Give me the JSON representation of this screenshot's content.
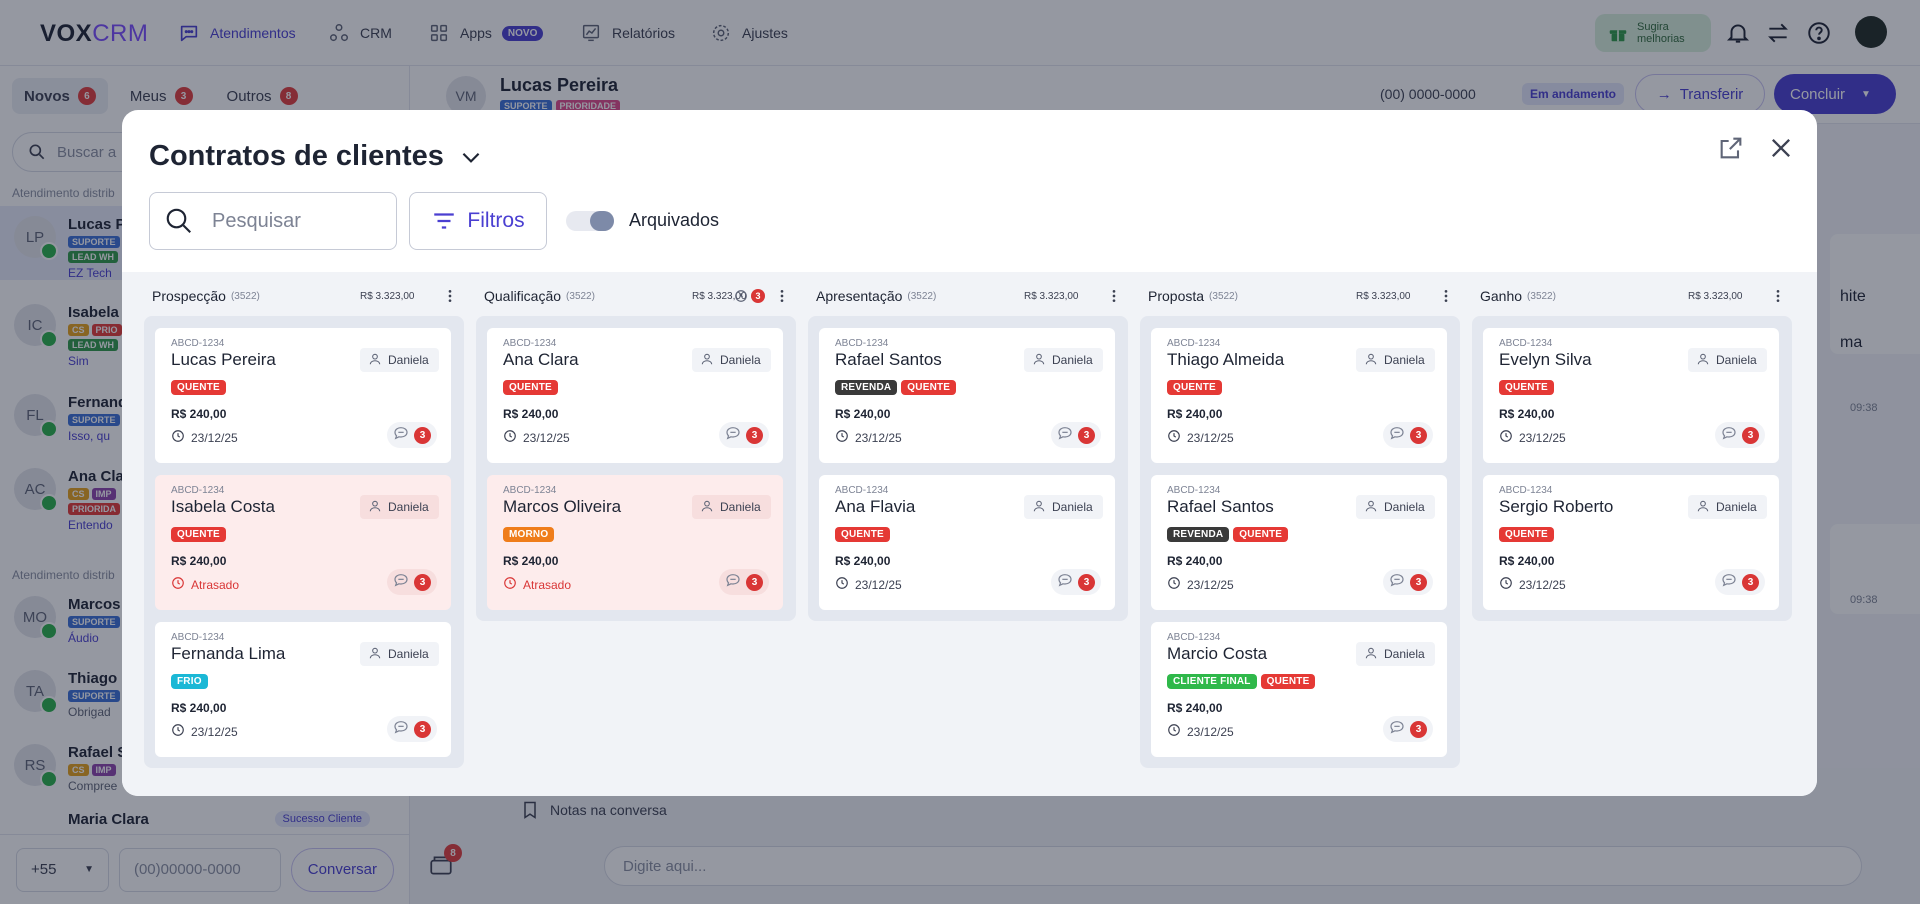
{
  "app": {
    "logo_part1": "VOX",
    "logo_part2": "CRM",
    "nav": [
      {
        "label": "Atendimentos"
      },
      {
        "label": "CRM"
      },
      {
        "label": "Apps",
        "badge": "NOVO"
      },
      {
        "label": "Relatórios"
      },
      {
        "label": "Ajustes"
      }
    ],
    "suggest_line1": "Sugira",
    "suggest_line2": "melhorias"
  },
  "left": {
    "tabs": [
      {
        "label": "Novos",
        "count": "6"
      },
      {
        "label": "Meus",
        "count": "3"
      },
      {
        "label": "Outros",
        "count": "8"
      }
    ],
    "search_placeholder": "Buscar a",
    "section1": "Atendimento distrib",
    "section2": "Atendimento distrib",
    "conversations": [
      {
        "initials": "LP",
        "name": "Lucas P",
        "sub": "EZ Tech"
      },
      {
        "initials": "IC",
        "name": "Isabela",
        "sub": "Sim"
      },
      {
        "initials": "FL",
        "name": "Fernand",
        "sub": "Isso, qu"
      },
      {
        "initials": "AC",
        "name": "Ana Cla",
        "sub": "Entendo"
      },
      {
        "initials": "MO",
        "name": "Marcos",
        "sub": "Áudio"
      },
      {
        "initials": "TA",
        "name": "Thiago",
        "sub": "Obrigad"
      },
      {
        "initials": "RS",
        "name": "Rafael S",
        "sub": "Compree"
      }
    ],
    "tags": {
      "suporte": "SUPORTE",
      "lead": "LEAD WH",
      "cs": "CS",
      "prio": "PRIO",
      "imp": "IMP",
      "prioridade": "PRIORIDA"
    },
    "partial_name": "Maria Clara",
    "partial_badge": "Sucesso Cliente",
    "ddi": "+55",
    "phone_placeholder": "(00)00000-0000",
    "talk_button": "Conversar"
  },
  "chat": {
    "initials": "VM",
    "name": "Lucas Pereira",
    "tag1": "SUPORTE",
    "tag2": "PRIORIDADE",
    "phone": "(00) 0000-0000",
    "status": "Em andamento",
    "transfer": "Transferir",
    "conclude": "Concluir",
    "msg_frag1": "hite",
    "msg_frag2": "ma",
    "time": "09:38",
    "notes": "Notas na conversa",
    "attach_count": "8",
    "input_placeholder": "Digite aqui..."
  },
  "modal": {
    "title": "Contratos de clientes",
    "search_placeholder": "Pesquisar",
    "filters": "Filtros",
    "archived": "Arquivados",
    "columns": [
      {
        "name": "Prospecção",
        "count": "(3522)",
        "total": "R$ 3.323,00",
        "cards": [
          {
            "code": "ABCD-1234",
            "name": "Lucas Pereira",
            "owner": "Daniela",
            "tags": [
              "QUENTE"
            ],
            "price": "R$ 240,00",
            "date": "23/12/25",
            "late": false,
            "msgs": "3"
          },
          {
            "code": "ABCD-1234",
            "name": "Isabela Costa",
            "owner": "Daniela",
            "tags": [
              "QUENTE"
            ],
            "price": "R$ 240,00",
            "date": "Atrasado",
            "late": true,
            "msgs": "3"
          },
          {
            "code": "ABCD-1234",
            "name": "Fernanda Lima",
            "owner": "Daniela",
            "tags": [
              "FRIO"
            ],
            "price": "R$ 240,00",
            "date": "23/12/25",
            "late": false,
            "msgs": "3"
          }
        ]
      },
      {
        "name": "Qualificação",
        "count": "(3522)",
        "total": "R$ 3.323,00",
        "alert": "3",
        "cards": [
          {
            "code": "ABCD-1234",
            "name": "Ana Clara",
            "owner": "Daniela",
            "tags": [
              "QUENTE"
            ],
            "price": "R$ 240,00",
            "date": "23/12/25",
            "late": false,
            "msgs": "3"
          },
          {
            "code": "ABCD-1234",
            "name": "Marcos Oliveira",
            "owner": "Daniela",
            "tags": [
              "MORNO"
            ],
            "price": "R$ 240,00",
            "date": "Atrasado",
            "late": true,
            "msgs": "3"
          }
        ]
      },
      {
        "name": "Apresentação",
        "count": "(3522)",
        "total": "R$ 3.323,00",
        "cards": [
          {
            "code": "ABCD-1234",
            "name": "Rafael Santos",
            "owner": "Daniela",
            "tags": [
              "REVENDA",
              "QUENTE"
            ],
            "price": "R$ 240,00",
            "date": "23/12/25",
            "late": false,
            "msgs": "3"
          },
          {
            "code": "ABCD-1234",
            "name": "Ana Flavia",
            "owner": "Daniela",
            "tags": [
              "QUENTE"
            ],
            "price": "R$ 240,00",
            "date": "23/12/25",
            "late": false,
            "msgs": "3"
          }
        ]
      },
      {
        "name": "Proposta",
        "count": "(3522)",
        "total": "R$ 3.323,00",
        "cards": [
          {
            "code": "ABCD-1234",
            "name": "Thiago Almeida",
            "owner": "Daniela",
            "tags": [
              "QUENTE"
            ],
            "price": "R$ 240,00",
            "date": "23/12/25",
            "late": false,
            "msgs": "3"
          },
          {
            "code": "ABCD-1234",
            "name": "Rafael Santos",
            "owner": "Daniela",
            "tags": [
              "REVENDA",
              "QUENTE"
            ],
            "price": "R$ 240,00",
            "date": "23/12/25",
            "late": false,
            "msgs": "3"
          },
          {
            "code": "ABCD-1234",
            "name": "Marcio Costa",
            "owner": "Daniela",
            "tags": [
              "CLIENTE FINAL",
              "QUENTE"
            ],
            "price": "R$ 240,00",
            "date": "23/12/25",
            "late": false,
            "msgs": "3"
          }
        ]
      },
      {
        "name": "Ganho",
        "count": "(3522)",
        "total": "R$ 3.323,00",
        "cards": [
          {
            "code": "ABCD-1234",
            "name": "Evelyn Silva",
            "owner": "Daniela",
            "tags": [
              "QUENTE"
            ],
            "price": "R$ 240,00",
            "date": "23/12/25",
            "late": false,
            "msgs": "3"
          },
          {
            "code": "ABCD-1234",
            "name": "Sergio Roberto",
            "owner": "Daniela",
            "tags": [
              "QUENTE"
            ],
            "price": "R$ 240,00",
            "date": "23/12/25",
            "late": false,
            "msgs": "3"
          }
        ]
      }
    ],
    "tag_colors": {
      "QUENTE": "#e53935",
      "FRIO": "#1bb8d6",
      "MORNO": "#ef7d1a",
      "REVENDA": "#3a3a3a",
      "CLIENTE FINAL": "#2fb84a"
    }
  },
  "colors": {
    "accent": "#4a3fd1",
    "danger": "#d93636",
    "late_card_bg": "#fdecec"
  }
}
